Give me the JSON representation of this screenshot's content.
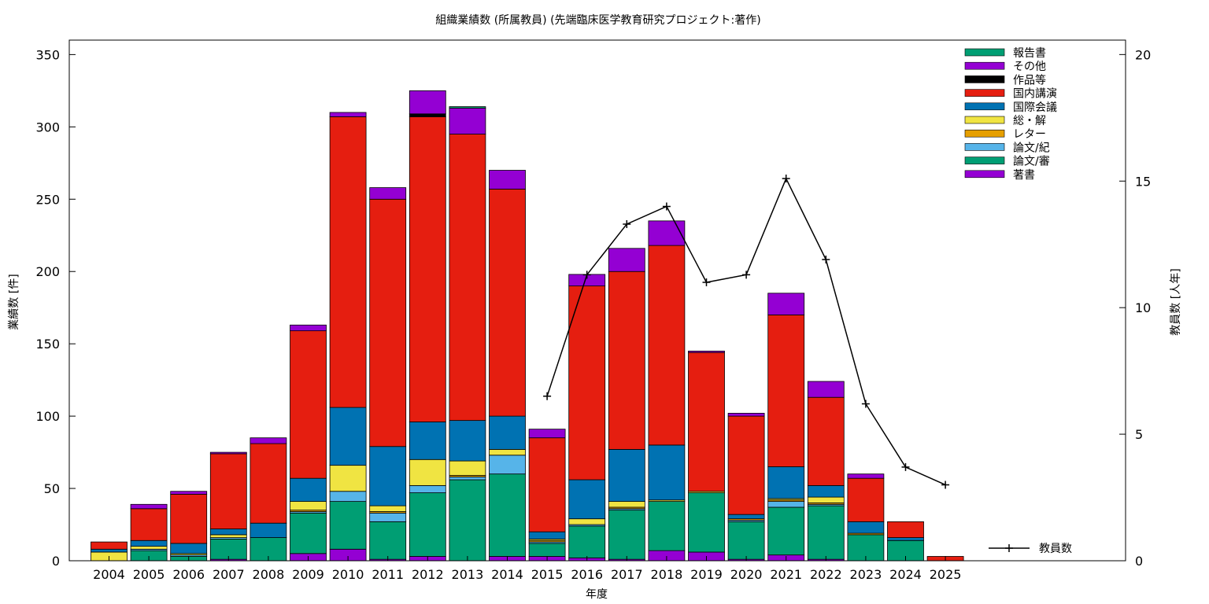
{
  "chart_data": {
    "type": "bar",
    "stacked": true,
    "title": "組織業績数 (所属教員) (先端臨床医学教育研究プロジェクト:著作)",
    "xlabel": "年度",
    "ylabel": "業績数 [件]",
    "y2label": "教員数 [人年]",
    "ylim": [
      0,
      360
    ],
    "y2lim": [
      0,
      20.57
    ],
    "yticks": [
      0,
      50,
      100,
      150,
      200,
      250,
      300,
      350
    ],
    "y2ticks": [
      0,
      5,
      10,
      15,
      20
    ],
    "legend_position": "top-right",
    "categories": [
      "2004",
      "2005",
      "2006",
      "2007",
      "2008",
      "2009",
      "2010",
      "2011",
      "2012",
      "2013",
      "2014",
      "2015",
      "2016",
      "2017",
      "2018",
      "2019",
      "2020",
      "2021",
      "2022",
      "2023",
      "2024",
      "2025"
    ],
    "series": [
      {
        "name": "著書",
        "color": "#9400d3",
        "values": [
          0,
          0,
          0,
          1,
          0,
          5,
          8,
          1,
          3,
          0,
          3,
          3,
          2,
          1,
          7,
          6,
          1,
          4,
          1,
          0,
          0,
          0
        ]
      },
      {
        "name": "論文/審",
        "color": "#009e73",
        "values": [
          0,
          7,
          3,
          14,
          16,
          28,
          33,
          26,
          44,
          56,
          57,
          9,
          22,
          34,
          34,
          41,
          26,
          33,
          37,
          18,
          14,
          0
        ]
      },
      {
        "name": "論文/紀",
        "color": "#56b4e9",
        "values": [
          0,
          1,
          1,
          1,
          0,
          1,
          7,
          6,
          5,
          2,
          13,
          1,
          1,
          1,
          0,
          0,
          1,
          4,
          1,
          0,
          0,
          0
        ]
      },
      {
        "name": "レター",
        "color": "#e69f00",
        "values": [
          0,
          0,
          0,
          0,
          0,
          1,
          0,
          1,
          0,
          1,
          0,
          1,
          0,
          1,
          0,
          0,
          1,
          1,
          1,
          1,
          0,
          0
        ]
      },
      {
        "name": "総・解",
        "color": "#f0e442",
        "values": [
          6,
          2,
          1,
          2,
          0,
          6,
          18,
          4,
          18,
          10,
          4,
          1,
          4,
          4,
          1,
          1,
          0,
          1,
          4,
          0,
          0,
          0
        ]
      },
      {
        "name": "国際会議",
        "color": "#0072b2",
        "values": [
          2,
          4,
          7,
          4,
          10,
          16,
          40,
          41,
          26,
          28,
          23,
          5,
          27,
          36,
          38,
          0,
          3,
          22,
          8,
          8,
          2,
          0
        ]
      },
      {
        "name": "国内講演",
        "color": "#e51e10",
        "values": [
          5,
          22,
          34,
          52,
          55,
          102,
          201,
          171,
          211,
          198,
          157,
          65,
          134,
          123,
          138,
          96,
          68,
          105,
          61,
          30,
          11,
          3
        ]
      },
      {
        "name": "作品等",
        "color": "#000000",
        "values": [
          0,
          0,
          0,
          0,
          0,
          0,
          0,
          0,
          2,
          0,
          0,
          0,
          0,
          0,
          0,
          0,
          0,
          0,
          0,
          0,
          0,
          0
        ]
      },
      {
        "name": "その他",
        "color": "#9400d3",
        "values": [
          0,
          3,
          2,
          1,
          4,
          4,
          3,
          8,
          16,
          18,
          13,
          6,
          8,
          16,
          17,
          1,
          2,
          15,
          11,
          3,
          0,
          0
        ]
      },
      {
        "name": "報告書",
        "color": "#009e73",
        "values": [
          0,
          0,
          0,
          0,
          0,
          0,
          0,
          0,
          0,
          1,
          0,
          0,
          0,
          0,
          0,
          0,
          0,
          0,
          0,
          0,
          0,
          0
        ]
      }
    ],
    "legend_order": [
      "報告書",
      "その他",
      "作品等",
      "国内講演",
      "国際会議",
      "総・解",
      "レター",
      "論文/紀",
      "論文/審",
      "著書"
    ],
    "line_series": {
      "name": "教員数",
      "axis": "y2",
      "x": [
        "2015",
        "2016",
        "2017",
        "2018",
        "2019",
        "2020",
        "2021",
        "2022",
        "2023",
        "2024",
        "2025"
      ],
      "values": [
        6.5,
        11.3,
        13.3,
        14.0,
        11.0,
        11.3,
        15.1,
        11.9,
        6.2,
        3.7,
        3.0
      ]
    }
  }
}
